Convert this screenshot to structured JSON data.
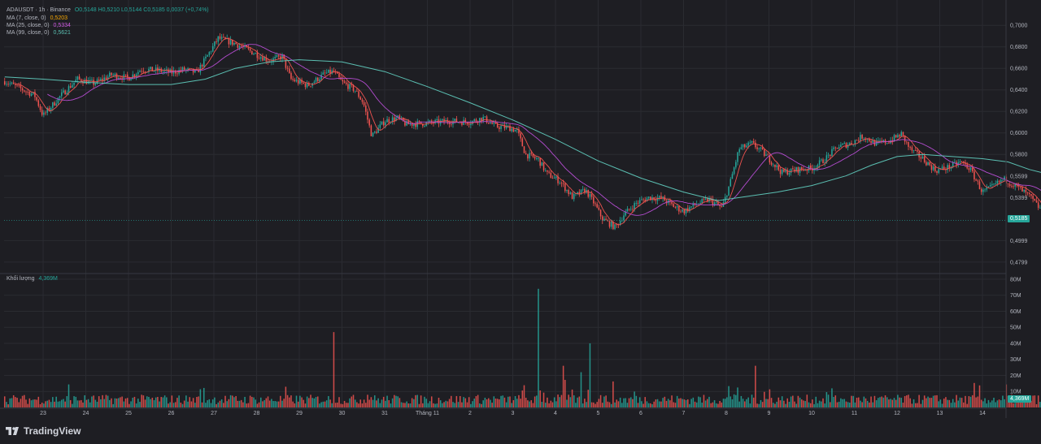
{
  "header": {
    "symbol": "ADAUSDT · 1h · Binance",
    "ohlc": "O0,5148  H0,5210  L0,5144  C0,5185  0,0037 (+0,74%)",
    "ma7_label": "MA (7, close, 0)",
    "ma7_value": "0,5203",
    "ma25_label": "MA (25, close, 0)",
    "ma25_value": "0,5334",
    "ma99_label": "MA (99, close, 0)",
    "ma99_value": "0,5621",
    "volume_label": "Khối lượng",
    "volume_value": "4,369M"
  },
  "badges": {
    "last_price": "0,5185",
    "last_volume": "4,369M"
  },
  "brand": {
    "name": "TradingView",
    "icon": "tradingview-logo-icon"
  },
  "colors": {
    "bull": "#26a69a",
    "bear": "#ef5350",
    "ma7": "#ef5350",
    "ma25": "#b44cd0",
    "ma99": "#5bbfb2",
    "grid": "#2a2b31",
    "text": "#b2b5be"
  },
  "chart_data": {
    "type": "candlestick",
    "price_axis": {
      "ticks": [
        0.7,
        0.68,
        0.66,
        0.64,
        0.62,
        0.6,
        0.58,
        0.5599,
        0.5399,
        0.4999,
        0.4799
      ],
      "tick_labels": [
        "0,7000",
        "0,6800",
        "0,6600",
        "0,6400",
        "0,6200",
        "0,6000",
        "0,5800",
        "0,5599",
        "0,5399",
        "0,4999",
        "0,4799"
      ],
      "range": [
        0.473,
        0.716
      ]
    },
    "volume_axis": {
      "ticks": [
        10,
        20,
        30,
        40,
        50,
        60,
        70,
        80
      ],
      "tick_labels": [
        "10M",
        "20M",
        "30M",
        "40M",
        "50M",
        "60M",
        "70M",
        "80M"
      ],
      "range": [
        0,
        82
      ]
    },
    "x_axis": {
      "labels": [
        "23",
        "24",
        "25",
        "26",
        "27",
        "28",
        "29",
        "30",
        "31",
        "Tháng 11",
        "2",
        "3",
        "4",
        "5",
        "6",
        "7",
        "8",
        "9",
        "10",
        "11",
        "12",
        "13",
        "14"
      ],
      "label_days": [
        23,
        24,
        25,
        26,
        27,
        28,
        29,
        30,
        31,
        32,
        33,
        34,
        35,
        36,
        37,
        38,
        39,
        40,
        41,
        42,
        43,
        44,
        45
      ]
    },
    "time_start_day": 22.1,
    "time_end_day": 45.4,
    "close_path": [
      [
        22.1,
        0.648
      ],
      [
        22.8,
        0.635
      ],
      [
        23.0,
        0.616
      ],
      [
        23.4,
        0.634
      ],
      [
        23.8,
        0.65
      ],
      [
        24.2,
        0.646
      ],
      [
        24.6,
        0.654
      ],
      [
        25.0,
        0.651
      ],
      [
        25.3,
        0.659
      ],
      [
        25.7,
        0.658
      ],
      [
        26.0,
        0.656
      ],
      [
        26.3,
        0.659
      ],
      [
        26.6,
        0.656
      ],
      [
        26.9,
        0.675
      ],
      [
        27.1,
        0.688
      ],
      [
        27.5,
        0.683
      ],
      [
        27.9,
        0.675
      ],
      [
        28.3,
        0.667
      ],
      [
        28.6,
        0.671
      ],
      [
        28.8,
        0.65
      ],
      [
        29.2,
        0.644
      ],
      [
        29.6,
        0.655
      ],
      [
        29.8,
        0.657
      ],
      [
        30.0,
        0.647
      ],
      [
        30.3,
        0.64
      ],
      [
        30.5,
        0.628
      ],
      [
        30.7,
        0.597
      ],
      [
        31.0,
        0.611
      ],
      [
        31.3,
        0.614
      ],
      [
        31.5,
        0.608
      ],
      [
        32.0,
        0.609
      ],
      [
        32.5,
        0.611
      ],
      [
        33.0,
        0.61
      ],
      [
        33.3,
        0.614
      ],
      [
        33.6,
        0.606
      ],
      [
        33.9,
        0.605
      ],
      [
        34.1,
        0.602
      ],
      [
        34.3,
        0.58
      ],
      [
        34.6,
        0.575
      ],
      [
        34.8,
        0.562
      ],
      [
        35.1,
        0.555
      ],
      [
        35.4,
        0.54
      ],
      [
        35.7,
        0.547
      ],
      [
        35.9,
        0.535
      ],
      [
        36.1,
        0.52
      ],
      [
        36.4,
        0.512
      ],
      [
        36.6,
        0.524
      ],
      [
        36.9,
        0.535
      ],
      [
        37.2,
        0.54
      ],
      [
        37.5,
        0.539
      ],
      [
        37.8,
        0.531
      ],
      [
        38.0,
        0.527
      ],
      [
        38.3,
        0.534
      ],
      [
        38.6,
        0.538
      ],
      [
        38.9,
        0.53
      ],
      [
        39.1,
        0.555
      ],
      [
        39.3,
        0.585
      ],
      [
        39.6,
        0.59
      ],
      [
        39.8,
        0.584
      ],
      [
        40.0,
        0.576
      ],
      [
        40.3,
        0.563
      ],
      [
        40.7,
        0.566
      ],
      [
        41.0,
        0.567
      ],
      [
        41.3,
        0.575
      ],
      [
        41.6,
        0.587
      ],
      [
        41.9,
        0.59
      ],
      [
        42.2,
        0.597
      ],
      [
        42.5,
        0.59
      ],
      [
        42.8,
        0.592
      ],
      [
        43.1,
        0.599
      ],
      [
        43.3,
        0.585
      ],
      [
        43.6,
        0.576
      ],
      [
        43.9,
        0.565
      ],
      [
        44.2,
        0.568
      ],
      [
        44.5,
        0.573
      ],
      [
        44.7,
        0.567
      ],
      [
        45.0,
        0.545
      ],
      [
        45.2,
        0.549
      ],
      [
        45.5,
        0.557
      ],
      [
        45.8,
        0.55
      ],
      [
        46.1,
        0.541
      ],
      [
        46.4,
        0.527
      ],
      [
        46.7,
        0.522
      ],
      [
        46.9,
        0.518
      ]
    ],
    "ma99_path": [
      [
        22.1,
        0.652
      ],
      [
        23.0,
        0.65
      ],
      [
        24.0,
        0.647
      ],
      [
        25.0,
        0.645
      ],
      [
        26.0,
        0.645
      ],
      [
        26.8,
        0.65
      ],
      [
        27.5,
        0.66
      ],
      [
        28.3,
        0.666
      ],
      [
        29.0,
        0.668
      ],
      [
        30.0,
        0.666
      ],
      [
        31.0,
        0.657
      ],
      [
        32.0,
        0.643
      ],
      [
        33.0,
        0.628
      ],
      [
        34.0,
        0.612
      ],
      [
        35.0,
        0.594
      ],
      [
        36.0,
        0.574
      ],
      [
        37.0,
        0.558
      ],
      [
        38.0,
        0.545
      ],
      [
        38.8,
        0.537
      ],
      [
        39.5,
        0.541
      ],
      [
        40.2,
        0.545
      ],
      [
        41.0,
        0.551
      ],
      [
        41.8,
        0.56
      ],
      [
        42.4,
        0.57
      ],
      [
        43.0,
        0.578
      ],
      [
        43.6,
        0.58
      ],
      [
        44.3,
        0.578
      ],
      [
        45.0,
        0.576
      ],
      [
        45.6,
        0.573
      ],
      [
        46.1,
        0.566
      ],
      [
        46.5,
        0.562
      ]
    ],
    "notable_volume_spikes": [
      [
        29.8,
        47
      ],
      [
        34.6,
        74
      ],
      [
        35.8,
        40
      ],
      [
        35.2,
        26
      ],
      [
        39.7,
        26
      ],
      [
        35.6,
        22
      ]
    ]
  }
}
